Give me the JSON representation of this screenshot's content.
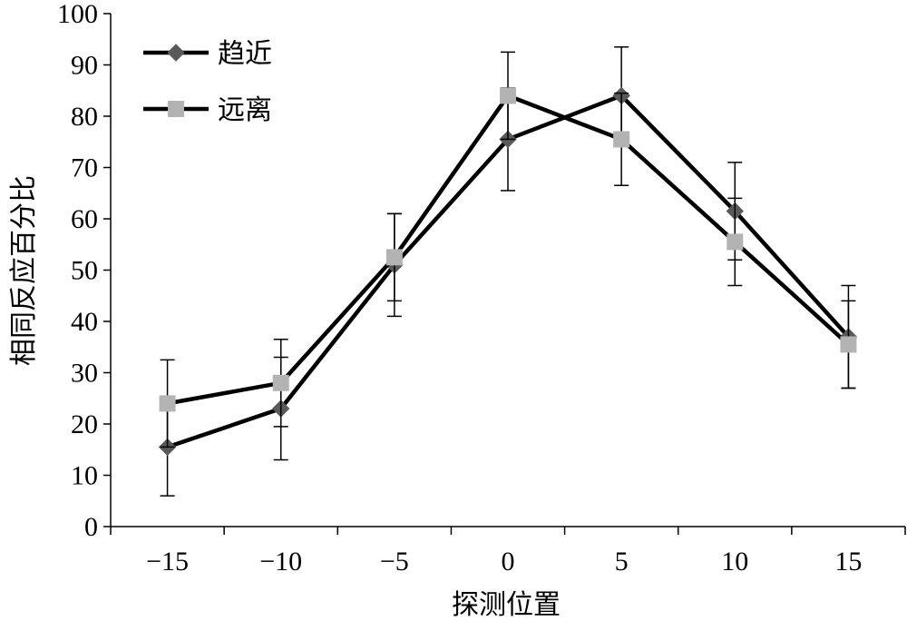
{
  "chart_data": {
    "type": "line",
    "xlabel": "探测位置",
    "ylabel": "相同反应百分比",
    "x": [
      -15,
      -10,
      -5,
      0,
      5,
      10,
      15
    ],
    "x_tick_labels": [
      "−15",
      "−10",
      "−5",
      "0",
      "5",
      "10",
      "15"
    ],
    "ylim": [
      0,
      100
    ],
    "y_ticks": [
      0,
      10,
      20,
      30,
      40,
      50,
      60,
      70,
      80,
      90,
      100
    ],
    "grid": false,
    "legend": "top-left",
    "series": [
      {
        "name": "趋近",
        "marker": "diamond",
        "marker_color": "#595959",
        "line_color": "#000000",
        "values": [
          15.5,
          23,
          51,
          75.5,
          84,
          61.5,
          37
        ],
        "error": [
          9.5,
          10,
          10,
          10,
          9.5,
          9.5,
          10
        ]
      },
      {
        "name": "远离",
        "marker": "square",
        "marker_color": "#b3b3b3",
        "line_color": "#000000",
        "values": [
          24,
          28,
          52.5,
          84,
          75.5,
          55.5,
          35.5
        ],
        "error": [
          8.5,
          8.5,
          8.5,
          8.5,
          9,
          8.5,
          8.5
        ]
      }
    ]
  }
}
